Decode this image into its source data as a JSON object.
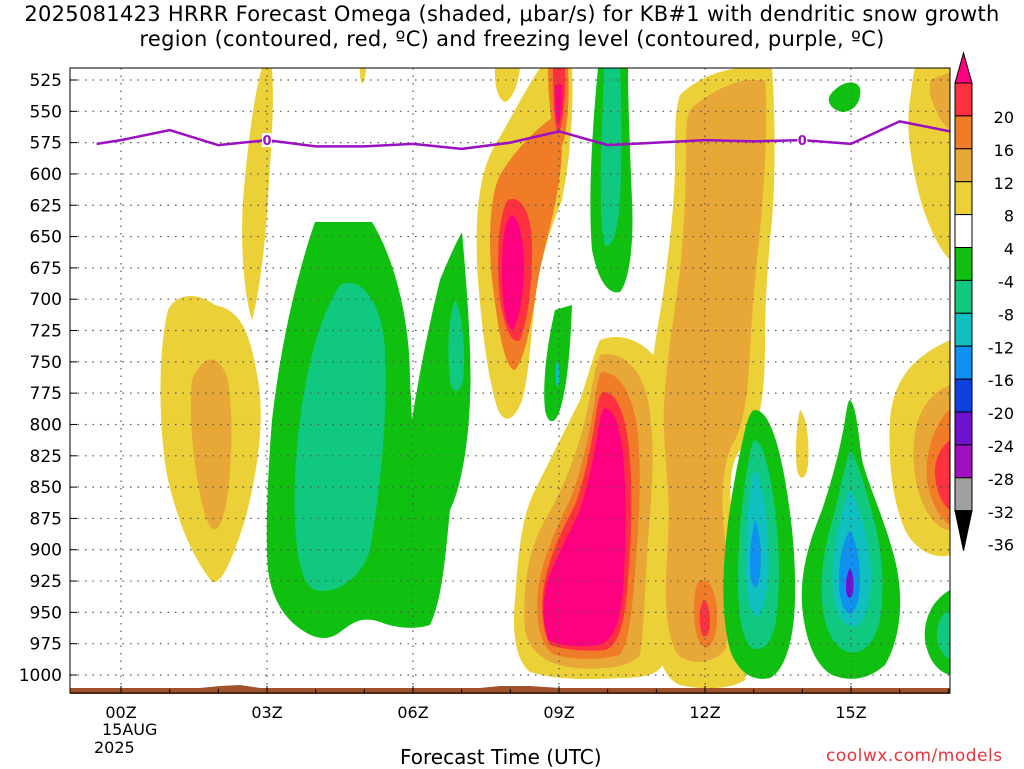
{
  "title": "2025081423 HRRR Forecast Omega (shaded, μbar/s) for KB#1 with dendritic snow growth region (contoured, red, ºC) and freezing level (contoured, purple, ºC)",
  "x_axis_title": "Forecast Time (UTC)",
  "credit": "coolwx.com/models",
  "date_label_day": "15AUG",
  "date_label_year": "2025",
  "colors": {
    "freezing_level": "#9b10c0",
    "terrain": "#a0522d",
    "grid": "#555555"
  },
  "chart_data": {
    "type": "heatmap",
    "title": "2025081423 HRRR Forecast Omega (shaded, μbar/s) for KB#1 with dendritic snow growth region (contoured, red, ºC) and freezing level (contoured, purple, ºC)",
    "xlabel": "Forecast Time (UTC)",
    "x_ticks": [
      "00Z",
      "03Z",
      "06Z",
      "09Z",
      "12Z",
      "15Z"
    ],
    "x_range_hours": [
      -0.5,
      17.5
    ],
    "y_ticks": [
      525,
      550,
      575,
      600,
      625,
      650,
      675,
      700,
      725,
      750,
      775,
      800,
      825,
      850,
      875,
      900,
      925,
      950,
      975,
      1000
    ],
    "y_range_hpa": [
      515,
      1015
    ],
    "grid": true,
    "colorbar": {
      "labels": [
        20,
        16,
        12,
        8,
        4,
        -4,
        -8,
        -12,
        -16,
        -20,
        -24,
        -28,
        -32,
        -36
      ],
      "colors": [
        "#ff0080",
        "#ff3040",
        "#f07c28",
        "#e8a838",
        "#ecd038",
        "#ffffff",
        "#10c010",
        "#10c880",
        "#10c0c0",
        "#1090f0",
        "#1040e0",
        "#7010d0",
        "#a010c0",
        "#a0a0a0",
        "#000000"
      ]
    },
    "freezing_level": {
      "label": "0",
      "hours": [
        -0.5,
        0,
        1,
        2,
        3,
        4,
        5,
        6,
        7,
        8,
        9,
        10,
        11,
        12,
        13,
        14,
        15,
        16,
        17.5
      ],
      "pressure_hpa": [
        576,
        573,
        565,
        577,
        573,
        578,
        578,
        576,
        580,
        575,
        566,
        577,
        575,
        573,
        574,
        573,
        576,
        558,
        566
      ]
    },
    "omega_features": [
      {
        "hour_center": 1.8,
        "p_top": 640,
        "p_bottom": 895,
        "peak_ubar_s": 10
      },
      {
        "hour_center": 4.5,
        "p_top": 615,
        "p_bottom": 965,
        "peak_ubar_s": -14
      },
      {
        "hour_center": 8.0,
        "p_top": 535,
        "p_bottom": 760,
        "peak_ubar_s": 18
      },
      {
        "hour_center": 10.0,
        "p_top": 525,
        "p_bottom": 655,
        "peak_ubar_s": -12
      },
      {
        "hour_center": 9.7,
        "p_top": 695,
        "p_bottom": 995,
        "peak_ubar_s": 30
      },
      {
        "hour_center": 12.0,
        "p_top": 520,
        "p_bottom": 990,
        "peak_ubar_s": 14
      },
      {
        "hour_center": 13.3,
        "p_top": 755,
        "p_bottom": 990,
        "peak_ubar_s": -18
      },
      {
        "hour_center": 15.0,
        "p_top": 750,
        "p_bottom": 1000,
        "peak_ubar_s": -20
      },
      {
        "hour_center": 17.2,
        "p_top": 520,
        "p_bottom": 880,
        "peak_ubar_s": 16
      }
    ]
  }
}
